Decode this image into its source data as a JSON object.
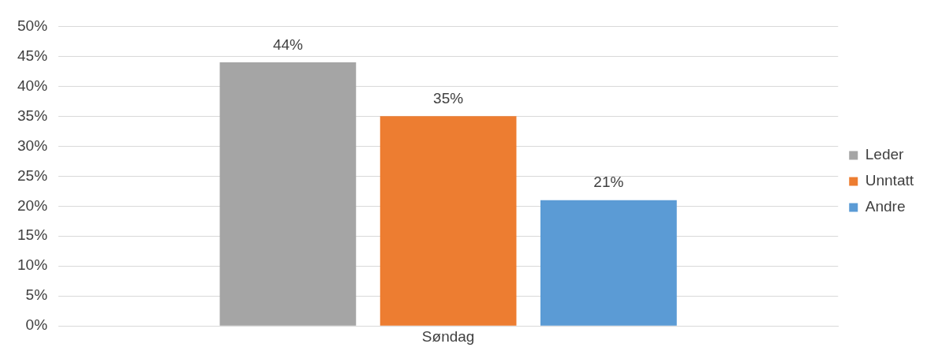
{
  "chart_data": {
    "type": "bar",
    "categories": [
      "Søndag"
    ],
    "series": [
      {
        "name": "Leder",
        "color": "#a5a5a5",
        "values": [
          44
        ],
        "value_labels": [
          "44%"
        ]
      },
      {
        "name": "Unntatt",
        "color": "#ed7d31",
        "values": [
          35
        ],
        "value_labels": [
          "35%"
        ]
      },
      {
        "name": "Andre",
        "color": "#5b9bd5",
        "values": [
          21
        ],
        "value_labels": [
          "21%"
        ]
      }
    ],
    "ylim": [
      0,
      50
    ],
    "yticks": [
      {
        "value": 0,
        "label": "0%"
      },
      {
        "value": 5,
        "label": "5%"
      },
      {
        "value": 10,
        "label": "10%"
      },
      {
        "value": 15,
        "label": "15%"
      },
      {
        "value": 20,
        "label": "20%"
      },
      {
        "value": 25,
        "label": "25%"
      },
      {
        "value": 30,
        "label": "30%"
      },
      {
        "value": 35,
        "label": "35%"
      },
      {
        "value": 40,
        "label": "40%"
      },
      {
        "value": 45,
        "label": "45%"
      },
      {
        "value": 50,
        "label": "50%"
      }
    ],
    "grid": "y",
    "legend": "right"
  }
}
